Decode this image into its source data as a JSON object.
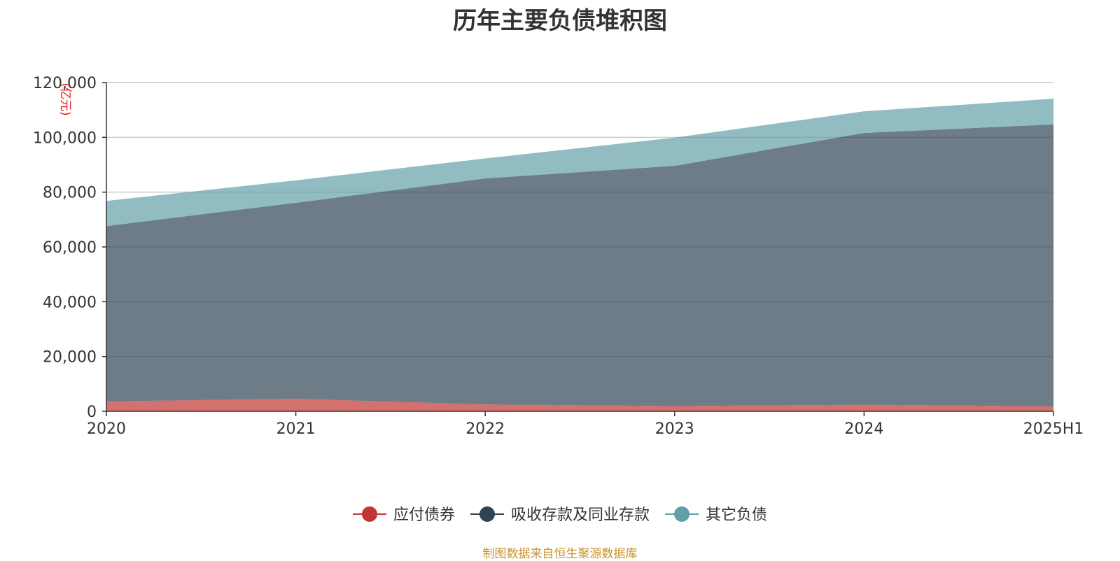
{
  "chart_data": {
    "type": "area",
    "stacked": true,
    "title": "历年主要负债堆积图",
    "ylabel": "(亿元)",
    "categories": [
      "2020",
      "2021",
      "2022",
      "2023",
      "2024",
      "2025H1"
    ],
    "ylim": [
      0,
      120000
    ],
    "yticks": [
      0,
      20000,
      40000,
      60000,
      80000,
      100000,
      120000
    ],
    "grid": true,
    "legend_position": "bottom-center",
    "series": [
      {
        "name": "应付债券",
        "color": "#c23531",
        "values": [
          3600,
          4600,
          2500,
          1900,
          2400,
          1800
        ]
      },
      {
        "name": "吸收存款及同业存款",
        "color": "#2f4554",
        "values": [
          64000,
          71500,
          82500,
          87700,
          99200,
          102900
        ]
      },
      {
        "name": "其它负债",
        "color": "#61a0a8",
        "values": [
          9200,
          8200,
          7300,
          10300,
          7900,
          9400
        ]
      }
    ]
  },
  "source_note": "制图数据来自恒生聚源数据库"
}
